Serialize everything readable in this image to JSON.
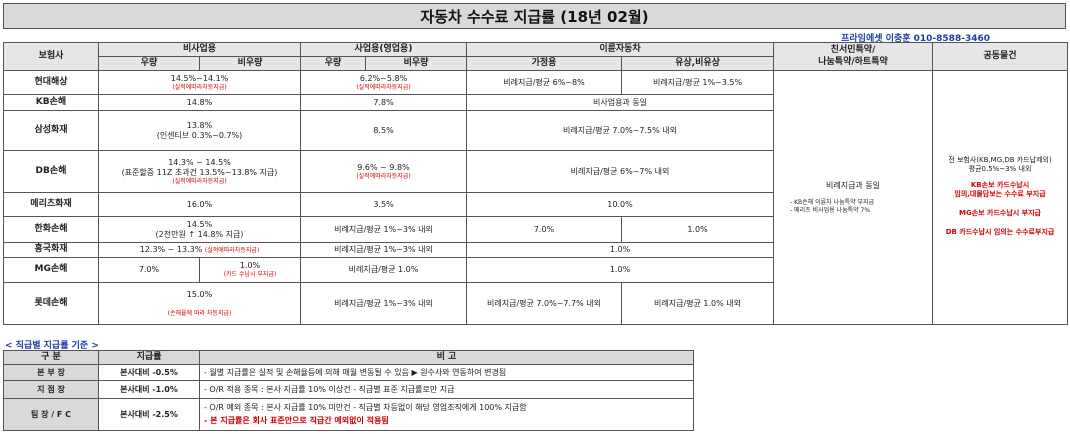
{
  "title": "자동차 수수료 지급률 (18년 02월)",
  "contact": "프라임에셋 이충훈 010-8588-3460",
  "headers": {
    "insurer": "보험사",
    "nonbiz": "비사업용",
    "biz": "사업용(영업용)",
    "twowheel": "이륜자동차",
    "friendly": "친서민특약/\n나눔특약/하트특약",
    "common": "공동물건",
    "good": "우량",
    "nongood": "비우량",
    "biz_good": "우량",
    "biz_nongood": "비우량",
    "home": "가정용",
    "paid": "유상,비유상"
  },
  "rows": {
    "hyundai": {
      "name": "현대해상",
      "nonbiz": "14.5%~14.1%",
      "nonbiz_note": "(실적에따라차등지급)",
      "biz": "6.2%~5.8%",
      "biz_note": "(실적에따라차등지급)",
      "home": "비례지급/평균 6%~8%",
      "paid": "비례지급/평균 1%~3.5%"
    },
    "kb": {
      "name": "KB손해",
      "nonbiz": "14.8%",
      "biz": "7.8%",
      "twowheel": "비사업용과 동일"
    },
    "samsung": {
      "name": "삼성화재",
      "nonbiz": "13.8%",
      "nonbiz_sub": "(인센티브 0.3%~0.7%)",
      "biz": "8.5%",
      "twowheel": "비례지급/평균 7.0%~7.5% 내외"
    },
    "db": {
      "name": "DB손해",
      "nonbiz": "14.3% ~ 14.5%",
      "nonbiz_sub": "(표준할증 11Z 초과건 13.5%~13.8% 지급)",
      "nonbiz_note": "(실적에따라차등지급)",
      "biz": "9.6% ~ 9.8%",
      "biz_note": "(실적에따라차등지급)",
      "twowheel": "비례지급/평균 6%~7% 내외"
    },
    "meritz": {
      "name": "메리츠화재",
      "nonbiz": "16.0%",
      "biz": "3.5%",
      "twowheel": "10.0%"
    },
    "hanwha": {
      "name": "한화손해",
      "nonbiz": "14.5%",
      "nonbiz_sub": "(2천만원 ↑ 14.8% 지급)",
      "biz": "비례지급/평균 1%~3% 내외",
      "home": "7.0%",
      "paid": "1.0%"
    },
    "heungkuk": {
      "name": "흥국화재",
      "nonbiz": "12.3% ~ 13.3%",
      "nonbiz_note": "(실적에따라차등지급)",
      "biz": "비례지급/평균 1%~3% 내외",
      "twowheel": "1.0%"
    },
    "mg": {
      "name": "MG손해",
      "good": "7.0%",
      "nongood": "1.0%",
      "nongood_note": "(카드 수납시 부지급)",
      "biz": "비례지급/평균 1.0%",
      "twowheel": "1.0%"
    },
    "lotte": {
      "name": "롯데손해",
      "nonbiz": "15.0%",
      "nonbiz_note": "(손해율에 따라 차등지급)",
      "biz": "비례지급/평균 1%~3% 내외",
      "home": "비례지급/평균 7.0%~7.7% 내외",
      "paid": "비례지급/평균 1.0% 내외"
    }
  },
  "friendly": {
    "main": "비례지급과 동일",
    "note1": "- KB손해 이륜차 나눔특약 부지급",
    "note2": "- 메리츠 비사업용 나눔특약 7%"
  },
  "common": {
    "line1": "전 보험사(KB,MG,DB 카드납제외)",
    "line2": "평균0.5%~3% 내외",
    "line3": "KB손보 카드수납시",
    "line4": "임의,대물담보는 수수료 부지급",
    "line5": "MG손보 카드수납시 부지급",
    "line6": "DB 카드수납시 임의는 수수료부지급"
  },
  "sub": {
    "section_title": "< 직급별 지급률 기준 >",
    "h_grade": "구      분",
    "h_rate": "지급률",
    "h_note": "비     고",
    "rows": [
      {
        "grade": "본   부   장",
        "rate": "본사대비 -0.5%"
      },
      {
        "grade": "지   점   장",
        "rate": "본사대비 -1.0%"
      },
      {
        "grade": "팀 장 / F C",
        "rate": "본사대비 -2.5%"
      }
    ],
    "notes": [
      "- 월별 지급률은 실적 및 손해율등에 의해 매월 변동될 수 있음 ▶ 원수사와 연동하여 변경됨",
      "- O/R 적용 종목 : 본사 지급률 10% 이상건 - 직급별 표준 지급률로만 지급",
      "- O/R 예외 종목 : 본사 지급률 10% 미만건 - 직급별 차등없이 해당 영업조직에게 100% 지급함",
      "- 본 지급률은 회사 표준안으로 직급간 예외없이 적용됨"
    ]
  }
}
